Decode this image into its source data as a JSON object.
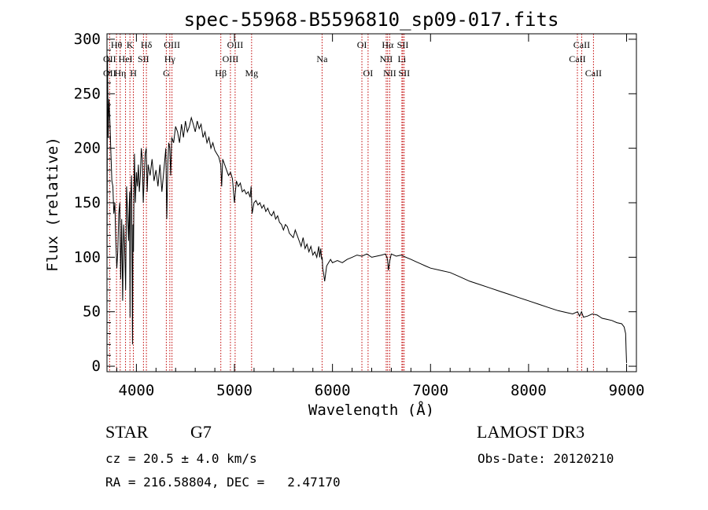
{
  "chart_data": {
    "type": "line",
    "title": "spec-55968-B5596810_sp09-017.fits",
    "xlabel": "Wavelength (Å)",
    "ylabel": "Flux (relative)",
    "xlim": [
      3700,
      9100
    ],
    "ylim": [
      -5,
      305
    ],
    "xticks": [
      4000,
      5000,
      6000,
      7000,
      8000,
      9000
    ],
    "yticks": [
      0,
      50,
      100,
      150,
      200,
      250,
      300
    ],
    "series": [
      {
        "name": "flux",
        "x": [
          3700,
          3705,
          3712,
          3720,
          3730,
          3740,
          3750,
          3760,
          3770,
          3780,
          3790,
          3800,
          3810,
          3820,
          3830,
          3840,
          3850,
          3860,
          3870,
          3880,
          3890,
          3900,
          3910,
          3920,
          3930,
          3935,
          3940,
          3950,
          3960,
          3965,
          3970,
          3975,
          3980,
          3990,
          4000,
          4010,
          4020,
          4030,
          4040,
          4050,
          4060,
          4070,
          4080,
          4090,
          4100,
          4110,
          4120,
          4140,
          4160,
          4180,
          4200,
          4220,
          4240,
          4260,
          4280,
          4300,
          4310,
          4320,
          4330,
          4340,
          4350,
          4360,
          4380,
          4400,
          4420,
          4440,
          4460,
          4480,
          4500,
          4520,
          4540,
          4560,
          4580,
          4600,
          4620,
          4640,
          4660,
          4680,
          4700,
          4720,
          4740,
          4760,
          4780,
          4800,
          4820,
          4840,
          4860,
          4870,
          4880,
          4900,
          4920,
          4940,
          4960,
          4980,
          5000,
          5020,
          5040,
          5060,
          5080,
          5100,
          5120,
          5140,
          5160,
          5170,
          5180,
          5190,
          5200,
          5220,
          5240,
          5260,
          5280,
          5300,
          5320,
          5340,
          5360,
          5380,
          5400,
          5420,
          5440,
          5460,
          5480,
          5500,
          5520,
          5540,
          5560,
          5580,
          5600,
          5620,
          5640,
          5660,
          5680,
          5700,
          5720,
          5740,
          5760,
          5780,
          5800,
          5820,
          5840,
          5860,
          5870,
          5880,
          5890,
          5895,
          5900,
          5910,
          5920,
          5940,
          5960,
          5980,
          6000,
          6050,
          6100,
          6150,
          6200,
          6250,
          6300,
          6350,
          6400,
          6450,
          6500,
          6540,
          6555,
          6563,
          6570,
          6585,
          6600,
          6650,
          6700,
          6750,
          6800,
          6850,
          6900,
          6950,
          7000,
          7100,
          7200,
          7300,
          7400,
          7500,
          7600,
          7700,
          7800,
          7900,
          8000,
          8100,
          8200,
          8300,
          8400,
          8450,
          8500,
          8520,
          8540,
          8560,
          8600,
          8650,
          8700,
          8750,
          8800,
          8850,
          8900,
          8950,
          8975,
          8990,
          8995,
          9000
        ],
        "y": [
          75,
          285,
          210,
          245,
          225,
          195,
          170,
          165,
          140,
          150,
          115,
          90,
          105,
          140,
          150,
          80,
          135,
          60,
          130,
          110,
          70,
          165,
          140,
          115,
          160,
          45,
          150,
          175,
          20,
          130,
          105,
          160,
          195,
          150,
          178,
          165,
          185,
          160,
          175,
          200,
          190,
          150,
          175,
          195,
          200,
          160,
          185,
          175,
          190,
          170,
          180,
          165,
          185,
          160,
          180,
          200,
          135,
          185,
          205,
          200,
          175,
          210,
          205,
          220,
          215,
          205,
          222,
          210,
          225,
          215,
          220,
          228,
          222,
          215,
          225,
          218,
          222,
          210,
          215,
          205,
          210,
          200,
          205,
          198,
          195,
          192,
          185,
          165,
          190,
          185,
          180,
          175,
          178,
          172,
          150,
          170,
          165,
          168,
          160,
          162,
          158,
          160,
          155,
          165,
          140,
          145,
          150,
          152,
          148,
          150,
          145,
          148,
          142,
          145,
          140,
          138,
          142,
          135,
          138,
          132,
          130,
          125,
          130,
          128,
          122,
          120,
          118,
          125,
          120,
          115,
          110,
          118,
          108,
          112,
          105,
          110,
          102,
          105,
          100,
          110,
          100,
          108,
          98,
          100,
          90,
          85,
          78,
          92,
          95,
          98,
          95,
          97,
          95,
          98,
          100,
          102,
          101,
          103,
          100,
          101,
          102,
          103,
          100,
          97,
          88,
          97,
          103,
          101,
          102,
          100,
          98,
          96,
          94,
          92,
          90,
          88,
          86,
          82,
          78,
          75,
          72,
          69,
          66,
          63,
          60,
          57,
          54,
          51,
          49,
          48,
          50,
          46,
          50,
          45,
          46,
          48,
          47,
          44,
          43,
          42,
          40,
          39,
          36,
          30,
          15,
          3
        ]
      }
    ],
    "lines": [
      {
        "label": "Hθ",
        "x": 3797,
        "row": 0
      },
      {
        "label": "OII",
        "x": 3727,
        "row": 1
      },
      {
        "label": "OII",
        "x": 3727,
        "row": 2
      },
      {
        "label": "K",
        "x": 3934,
        "row": 0
      },
      {
        "label": "HeI",
        "x": 3889,
        "row": 1
      },
      {
        "label": "Hη",
        "x": 3835,
        "row": 2
      },
      {
        "label": "Hδ",
        "x": 4102,
        "row": 0
      },
      {
        "label": "SII",
        "x": 4072,
        "row": 1
      },
      {
        "label": "H",
        "x": 3969,
        "row": 2
      },
      {
        "label": "OIII",
        "x": 4363,
        "row": 0
      },
      {
        "label": "Hγ",
        "x": 4341,
        "row": 1
      },
      {
        "label": "G",
        "x": 4305,
        "row": 2
      },
      {
        "label": "OIII",
        "x": 5007,
        "row": 0
      },
      {
        "label": "OIII",
        "x": 4959,
        "row": 1
      },
      {
        "label": "Hβ",
        "x": 4861,
        "row": 2
      },
      {
        "label": "Mg",
        "x": 5175,
        "row": 2
      },
      {
        "label": "Na",
        "x": 5894,
        "row": 1
      },
      {
        "label": "OI",
        "x": 6300,
        "row": 0
      },
      {
        "label": "OI",
        "x": 6363,
        "row": 2
      },
      {
        "label": "Hα",
        "x": 6563,
        "row": 0
      },
      {
        "label": "SII",
        "x": 6717,
        "row": 0
      },
      {
        "label": "NII",
        "x": 6548,
        "row": 1
      },
      {
        "label": "Li",
        "x": 6708,
        "row": 1
      },
      {
        "label": "NII",
        "x": 6584,
        "row": 2
      },
      {
        "label": "SII",
        "x": 6731,
        "row": 2
      },
      {
        "label": "CaII",
        "x": 8542,
        "row": 0
      },
      {
        "label": "CaII",
        "x": 8498,
        "row": 1
      },
      {
        "label": "CaII",
        "x": 8662,
        "row": 2
      }
    ]
  },
  "info": {
    "object_class": "STAR",
    "subclass": "G7",
    "survey": "LAMOST DR3",
    "redshift": "cz = 20.5 ± 4.0 km/s",
    "obs_date": "Obs-Date: 20120210",
    "coords": "RA = 216.58804, DEC =   2.47170"
  },
  "colors": {
    "line_marker": "#c00000",
    "spectrum": "#000000"
  }
}
